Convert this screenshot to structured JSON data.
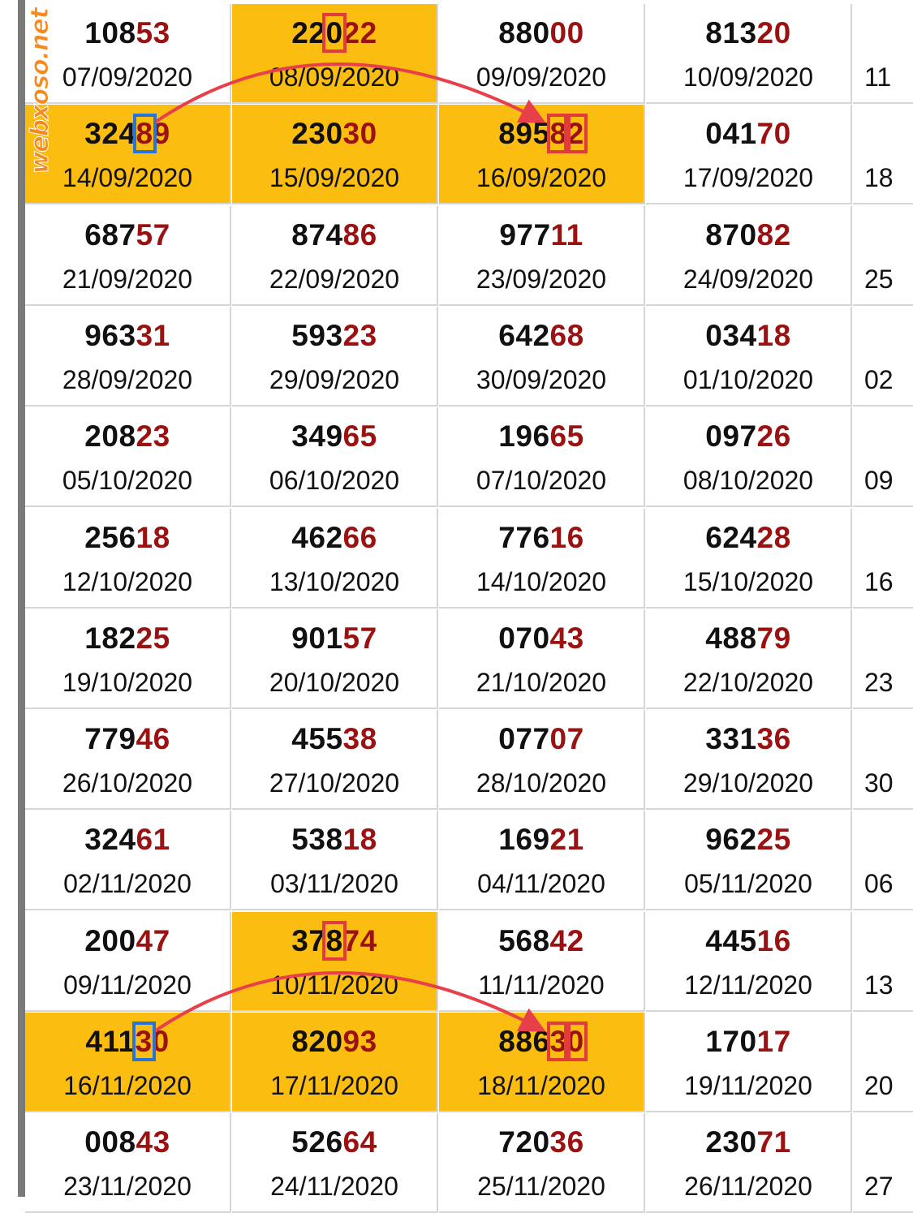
{
  "watermark": "webxoso.net",
  "colors": {
    "highlight": "#fbbd10",
    "tail_digits": "#9b1212",
    "mark_red": "#e23b3b",
    "mark_blue": "#2874d6",
    "arrow": "#e8404a"
  },
  "rows": [
    [
      {
        "num": "10853",
        "date": "07/09/2020"
      },
      {
        "num": "22022",
        "date": "08/09/2020",
        "hl": true,
        "mark": [
          2
        ],
        "mark_color": "red"
      },
      {
        "num": "88000",
        "date": "09/09/2020"
      },
      {
        "num": "81320",
        "date": "10/09/2020"
      },
      {
        "num": "",
        "date": "11"
      }
    ],
    [
      {
        "num": "32489",
        "date": "14/09/2020",
        "hl": true,
        "mark": [
          3
        ],
        "mark_color": "blue"
      },
      {
        "num": "23030",
        "date": "15/09/2020",
        "hl": true
      },
      {
        "num": "89582",
        "date": "16/09/2020",
        "hl": true,
        "mark": [
          3,
          4
        ],
        "mark_color": "red"
      },
      {
        "num": "04170",
        "date": "17/09/2020"
      },
      {
        "num": "",
        "date": "18"
      }
    ],
    [
      {
        "num": "68757",
        "date": "21/09/2020"
      },
      {
        "num": "87486",
        "date": "22/09/2020"
      },
      {
        "num": "97711",
        "date": "23/09/2020"
      },
      {
        "num": "87082",
        "date": "24/09/2020"
      },
      {
        "num": "",
        "date": "25"
      }
    ],
    [
      {
        "num": "96331",
        "date": "28/09/2020"
      },
      {
        "num": "59323",
        "date": "29/09/2020"
      },
      {
        "num": "64268",
        "date": "30/09/2020"
      },
      {
        "num": "03418",
        "date": "01/10/2020"
      },
      {
        "num": "",
        "date": "02"
      }
    ],
    [
      {
        "num": "20823",
        "date": "05/10/2020"
      },
      {
        "num": "34965",
        "date": "06/10/2020"
      },
      {
        "num": "19665",
        "date": "07/10/2020"
      },
      {
        "num": "09726",
        "date": "08/10/2020"
      },
      {
        "num": "",
        "date": "09"
      }
    ],
    [
      {
        "num": "25618",
        "date": "12/10/2020"
      },
      {
        "num": "46266",
        "date": "13/10/2020"
      },
      {
        "num": "77616",
        "date": "14/10/2020"
      },
      {
        "num": "62428",
        "date": "15/10/2020"
      },
      {
        "num": "",
        "date": "16"
      }
    ],
    [
      {
        "num": "18225",
        "date": "19/10/2020"
      },
      {
        "num": "90157",
        "date": "20/10/2020"
      },
      {
        "num": "07043",
        "date": "21/10/2020"
      },
      {
        "num": "48879",
        "date": "22/10/2020"
      },
      {
        "num": "",
        "date": "23"
      }
    ],
    [
      {
        "num": "77946",
        "date": "26/10/2020"
      },
      {
        "num": "45538",
        "date": "27/10/2020"
      },
      {
        "num": "07707",
        "date": "28/10/2020"
      },
      {
        "num": "33136",
        "date": "29/10/2020"
      },
      {
        "num": "",
        "date": "30"
      }
    ],
    [
      {
        "num": "32461",
        "date": "02/11/2020"
      },
      {
        "num": "53818",
        "date": "03/11/2020"
      },
      {
        "num": "16921",
        "date": "04/11/2020"
      },
      {
        "num": "96225",
        "date": "05/11/2020"
      },
      {
        "num": "",
        "date": "06"
      }
    ],
    [
      {
        "num": "20047",
        "date": "09/11/2020"
      },
      {
        "num": "37874",
        "date": "10/11/2020",
        "hl": true,
        "mark": [
          2
        ],
        "mark_color": "red"
      },
      {
        "num": "56842",
        "date": "11/11/2020"
      },
      {
        "num": "44516",
        "date": "12/11/2020"
      },
      {
        "num": "",
        "date": "13"
      }
    ],
    [
      {
        "num": "41130",
        "date": "16/11/2020",
        "hl": true,
        "mark": [
          3
        ],
        "mark_color": "blue"
      },
      {
        "num": "82093",
        "date": "17/11/2020",
        "hl": true
      },
      {
        "num": "88630",
        "date": "18/11/2020",
        "hl": true,
        "mark": [
          3,
          4
        ],
        "mark_color": "red"
      },
      {
        "num": "17017",
        "date": "19/11/2020"
      },
      {
        "num": "",
        "date": "20"
      }
    ],
    [
      {
        "num": "00843",
        "date": "23/11/2020"
      },
      {
        "num": "52664",
        "date": "24/11/2020"
      },
      {
        "num": "72036",
        "date": "25/11/2020"
      },
      {
        "num": "23071",
        "date": "26/11/2020"
      },
      {
        "num": "",
        "date": "27"
      }
    ]
  ]
}
